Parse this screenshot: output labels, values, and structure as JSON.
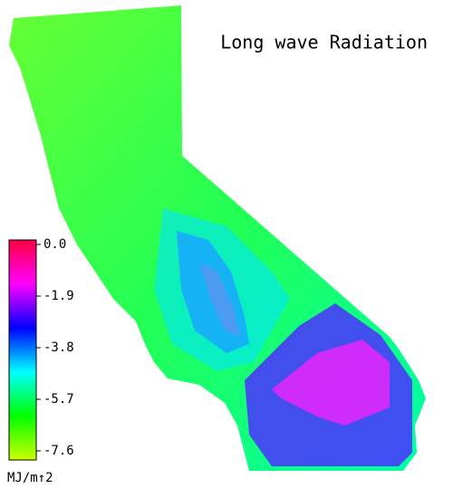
{
  "title": "Long wave Radiation",
  "colorbar": {
    "lim": [
      -7.6,
      0
    ],
    "ticks": [
      {
        "value": 0,
        "label": "0.0"
      },
      -1.9,
      -3.8,
      -5.7,
      -7.6
    ],
    "colors": [
      "#ff0040",
      "#ff00ff",
      "#0000ff",
      "#00ffff",
      "#00ff00",
      "#ccff00"
    ],
    "unit": "MJ/m↑2"
  }
}
